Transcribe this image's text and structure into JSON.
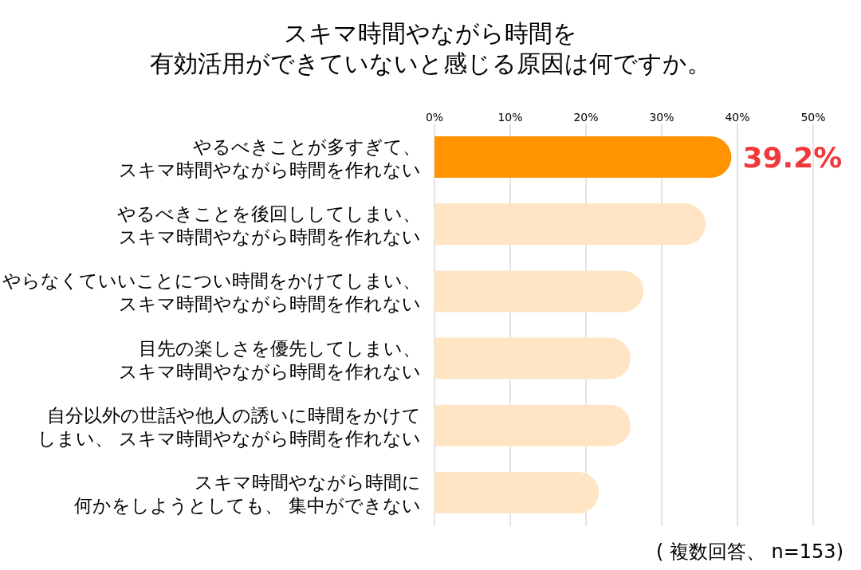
{
  "chart_data": {
    "type": "bar",
    "orientation": "horizontal",
    "title": "スキマ時間やながら時間を有効活用ができていないと感じる原因は何ですか。",
    "categories": [
      "やるべきことが多すぎて、スキマ時間やながら時間を作れない",
      "やるべきことを後回ししてしまい、スキマ時間やながら時間を作れない",
      "やらなくていいことについ時間をかけてしまい、スキマ時間やながら時間を作れない",
      "目先の楽しさを優先してしまい、スキマ時間やながら時間を作れない",
      "自分以外の世話や他人の誘いに時間をかけてしまい、 スキマ時間やながら時間を作れない",
      "スキマ時間やながら時間に何かをしようとしても、 集中ができない"
    ],
    "values": [
      39.2,
      35.8,
      27.6,
      25.9,
      25.9,
      21.7
    ],
    "colors": [
      "#ff9300",
      "#ffe5c4",
      "#ffe5c4",
      "#ffe5c4",
      "#ffe5c4",
      "#ffe5c4"
    ],
    "value_labels": [
      "39.2%",
      null,
      null,
      null,
      null,
      null
    ],
    "xlim": [
      0,
      50
    ],
    "xticks": [
      {
        "value": 0,
        "label": "0%"
      },
      {
        "value": 10,
        "label": "10%"
      },
      {
        "value": 20,
        "label": "20%"
      },
      {
        "value": 30,
        "label": "30%"
      },
      {
        "value": 40,
        "label": "40%"
      },
      {
        "value": 50,
        "label": "50%"
      }
    ],
    "grid": "x",
    "annotations": [
      "( 複数回答、 n=153)"
    ]
  }
}
